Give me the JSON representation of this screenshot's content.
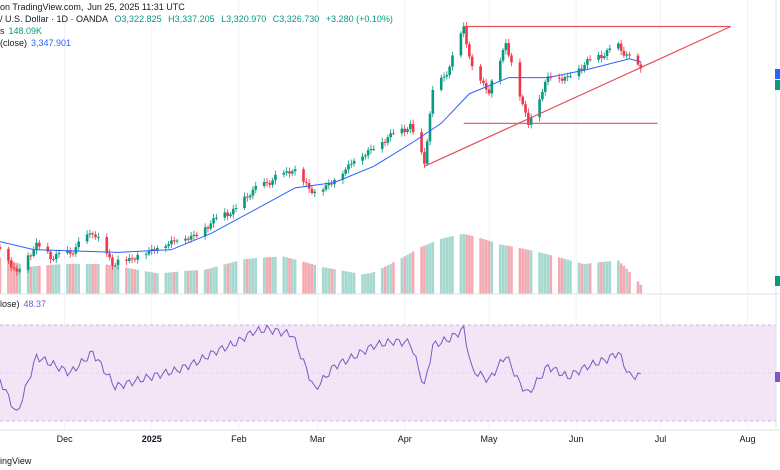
{
  "header": {
    "line1_prefix": "on TradingView.com,",
    "line1_date": "Jun 25, 2025 11:31 UTC",
    "symbol": "/ U.S. Dollar · 1D · OANDA",
    "open": "O3,322.825",
    "high": "H3,337.205",
    "low": "L3,320.970",
    "close": "C3,326.730",
    "change": "+3.280 (+0.10%)",
    "volume_label": "s",
    "volume_value": "148.09K",
    "ma_label": "(close)",
    "ma_value": "3,347.901"
  },
  "rsi_header": {
    "label": "lose)",
    "value": "48.37"
  },
  "footer": {
    "brand": "ingView"
  },
  "colors": {
    "up": "#089981",
    "down": "#f23645",
    "ma": "#2962ff",
    "rsi_line": "#7e57c2",
    "rsi_bg": "#f3e5f5",
    "trendline": "#e5505a",
    "vol_up": "#a7d8d0",
    "vol_down": "#f5aab1"
  },
  "chart_data": {
    "type": "candlestick",
    "x_axis_labels": [
      "Dec",
      "2025",
      "Feb",
      "Mar",
      "Apr",
      "May",
      "Jun",
      "Jul",
      "Aug"
    ],
    "y_range": [
      2500,
      3560
    ],
    "price_series": [
      [
        "2024-11-08",
        2660
      ],
      [
        "2024-11-14",
        2565
      ],
      [
        "2024-11-21",
        2670
      ],
      [
        "2024-11-26",
        2625
      ],
      [
        "2024-12-03",
        2640
      ],
      [
        "2024-12-11",
        2720
      ],
      [
        "2024-12-18",
        2600
      ],
      [
        "2024-12-24",
        2615
      ],
      [
        "2025-01-02",
        2655
      ],
      [
        "2025-01-10",
        2690
      ],
      [
        "2025-01-17",
        2705
      ],
      [
        "2025-01-24",
        2770
      ],
      [
        "2025-01-31",
        2800
      ],
      [
        "2025-02-05",
        2865
      ],
      [
        "2025-02-11",
        2900
      ],
      [
        "2025-02-20",
        2950
      ],
      [
        "2025-02-28",
        2860
      ],
      [
        "2025-03-07",
        2910
      ],
      [
        "2025-03-14",
        2985
      ],
      [
        "2025-03-21",
        3030
      ],
      [
        "2025-03-28",
        3085
      ],
      [
        "2025-04-03",
        3110
      ],
      [
        "2025-04-08",
        2980
      ],
      [
        "2025-04-11",
        3235
      ],
      [
        "2025-04-17",
        3330
      ],
      [
        "2025-04-22",
        3480
      ],
      [
        "2025-04-25",
        3320
      ],
      [
        "2025-05-01",
        3240
      ],
      [
        "2025-05-07",
        3420
      ],
      [
        "2025-05-12",
        3230
      ],
      [
        "2025-05-15",
        3120
      ],
      [
        "2025-05-22",
        3295
      ],
      [
        "2025-05-29",
        3290
      ],
      [
        "2025-06-05",
        3350
      ],
      [
        "2025-06-12",
        3385
      ],
      [
        "2025-06-16",
        3410
      ],
      [
        "2025-06-20",
        3360
      ],
      [
        "2025-06-24",
        3325
      ]
    ],
    "ma_series": [
      [
        "2024-11-08",
        2680
      ],
      [
        "2024-11-20",
        2650
      ],
      [
        "2024-12-05",
        2645
      ],
      [
        "2024-12-20",
        2640
      ],
      [
        "2025-01-08",
        2650
      ],
      [
        "2025-01-22",
        2710
      ],
      [
        "2025-02-07",
        2800
      ],
      [
        "2025-02-21",
        2880
      ],
      [
        "2025-03-07",
        2900
      ],
      [
        "2025-03-21",
        2960
      ],
      [
        "2025-04-04",
        3050
      ],
      [
        "2025-04-14",
        3120
      ],
      [
        "2025-04-24",
        3230
      ],
      [
        "2025-05-08",
        3290
      ],
      [
        "2025-05-22",
        3290
      ],
      [
        "2025-06-05",
        3320
      ],
      [
        "2025-06-20",
        3360
      ],
      [
        "2025-06-24",
        3348
      ]
    ],
    "volume_series": [
      [
        "2024-11-08",
        80
      ],
      [
        "2024-11-18",
        55
      ],
      [
        "2024-12-02",
        60
      ],
      [
        "2024-12-16",
        65
      ],
      [
        "2025-01-06",
        60
      ],
      [
        "2025-01-20",
        55
      ],
      [
        "2025-02-03",
        70
      ],
      [
        "2025-02-17",
        75
      ],
      [
        "2025-03-03",
        60
      ],
      [
        "2025-03-17",
        55
      ],
      [
        "2025-04-07",
        105
      ],
      [
        "2025-04-14",
        115
      ],
      [
        "2025-04-22",
        120
      ],
      [
        "2025-05-05",
        100
      ],
      [
        "2025-05-19",
        95
      ],
      [
        "2025-06-02",
        90
      ],
      [
        "2025-06-16",
        80
      ],
      [
        "2025-06-24",
        20
      ]
    ],
    "rsi_series": [
      [
        "2024-11-08",
        45
      ],
      [
        "2024-11-14",
        20
      ],
      [
        "2024-11-21",
        62
      ],
      [
        "2024-12-03",
        50
      ],
      [
        "2024-12-11",
        65
      ],
      [
        "2024-12-19",
        40
      ],
      [
        "2025-01-02",
        48
      ],
      [
        "2025-01-10",
        52
      ],
      [
        "2025-01-17",
        58
      ],
      [
        "2025-01-24",
        66
      ],
      [
        "2025-01-31",
        72
      ],
      [
        "2025-02-06",
        80
      ],
      [
        "2025-02-11",
        82
      ],
      [
        "2025-02-20",
        78
      ],
      [
        "2025-02-28",
        38
      ],
      [
        "2025-03-07",
        55
      ],
      [
        "2025-03-14",
        62
      ],
      [
        "2025-03-21",
        70
      ],
      [
        "2025-03-28",
        73
      ],
      [
        "2025-04-03",
        72
      ],
      [
        "2025-04-08",
        40
      ],
      [
        "2025-04-11",
        70
      ],
      [
        "2025-04-17",
        75
      ],
      [
        "2025-04-22",
        82
      ],
      [
        "2025-04-25",
        52
      ],
      [
        "2025-05-01",
        45
      ],
      [
        "2025-05-07",
        63
      ],
      [
        "2025-05-12",
        42
      ],
      [
        "2025-05-15",
        35
      ],
      [
        "2025-05-22",
        55
      ],
      [
        "2025-05-29",
        47
      ],
      [
        "2025-06-05",
        55
      ],
      [
        "2025-06-12",
        60
      ],
      [
        "2025-06-16",
        65
      ],
      [
        "2025-06-20",
        48
      ],
      [
        "2025-06-24",
        48
      ]
    ],
    "trendlines": [
      {
        "name": "resistance",
        "points": [
          [
            "2025-04-22",
            3480
          ],
          [
            "2025-07-26",
            3480
          ]
        ]
      },
      {
        "name": "support",
        "points": [
          [
            "2025-04-08",
            2960
          ],
          [
            "2025-07-26",
            3480
          ]
        ]
      },
      {
        "name": "horizontal",
        "points": [
          [
            "2025-04-22",
            3120
          ],
          [
            "2025-06-30",
            3120
          ]
        ]
      }
    ]
  }
}
